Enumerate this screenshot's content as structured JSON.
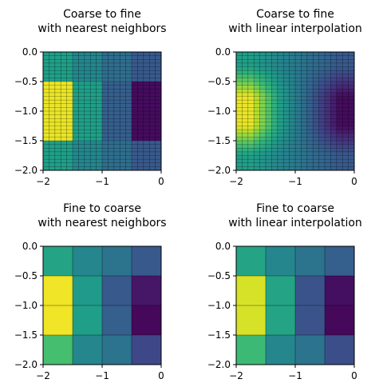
{
  "colormap": [
    "#440154",
    "#482878",
    "#3e4989",
    "#31688e",
    "#26828e",
    "#1f9e89",
    "#35b779",
    "#6ece58",
    "#b5de2b",
    "#fde725"
  ],
  "chart_data": [
    {
      "type": "heatmap",
      "title_lines": [
        "Coarse to fine",
        "with nearest neighbors"
      ],
      "xlim": [
        -2,
        0
      ],
      "ylim": [
        -2,
        0
      ],
      "xticks": [
        "-2",
        "-1",
        "0"
      ],
      "yticks": [
        "0.0",
        "-0.5",
        "-1.0",
        "-1.5",
        "-2.0"
      ],
      "grid": [
        32,
        20
      ],
      "values": [
        [
          0.56,
          0.46,
          0.36,
          0.28
        ],
        [
          0.97,
          0.56,
          0.3,
          0.03
        ],
        [
          0.97,
          0.56,
          0.3,
          0.03
        ],
        [
          0.56,
          0.46,
          0.36,
          0.28
        ]
      ]
    },
    {
      "type": "heatmap",
      "title_lines": [
        "Coarse to fine",
        "with linear interpolation"
      ],
      "xlim": [
        -2,
        0
      ],
      "ylim": [
        -2,
        0
      ],
      "xticks": [
        "-2",
        "-1",
        "0"
      ],
      "yticks": [
        "0.0",
        "-0.5",
        "-1.0",
        "-1.5",
        "-2.0"
      ],
      "grid": [
        32,
        20
      ],
      "values": [
        [
          0.56,
          0.46,
          0.36,
          0.28
        ],
        [
          0.97,
          0.56,
          0.3,
          0.03
        ],
        [
          0.97,
          0.56,
          0.3,
          0.03
        ],
        [
          0.56,
          0.46,
          0.36,
          0.28
        ]
      ]
    },
    {
      "type": "heatmap",
      "title_lines": [
        "Fine to coarse",
        "with nearest neighbors"
      ],
      "xlim": [
        -2,
        0
      ],
      "ylim": [
        -2,
        0
      ],
      "xticks": [
        "-2",
        "-1",
        "0"
      ],
      "yticks": [
        "0.0",
        "-0.5",
        "-1.0",
        "-1.5",
        "-2.0"
      ],
      "values": [
        [
          0.58,
          0.46,
          0.38,
          0.28
        ],
        [
          0.98,
          0.54,
          0.28,
          0.06
        ],
        [
          0.98,
          0.56,
          0.3,
          0.02
        ],
        [
          0.7,
          0.46,
          0.38,
          0.22
        ]
      ]
    },
    {
      "type": "heatmap",
      "title_lines": [
        "Fine to coarse",
        "with linear interpolation"
      ],
      "xlim": [
        -2,
        0
      ],
      "ylim": [
        -2,
        0
      ],
      "xticks": [
        "-2",
        "-1",
        "0"
      ],
      "yticks": [
        "0.0",
        "-0.5",
        "-1.0",
        "-1.5",
        "-2.0"
      ],
      "values": [
        [
          0.58,
          0.46,
          0.38,
          0.3
        ],
        [
          0.94,
          0.58,
          0.26,
          0.04
        ],
        [
          0.94,
          0.58,
          0.26,
          0.02
        ],
        [
          0.68,
          0.46,
          0.38,
          0.24
        ]
      ]
    }
  ]
}
